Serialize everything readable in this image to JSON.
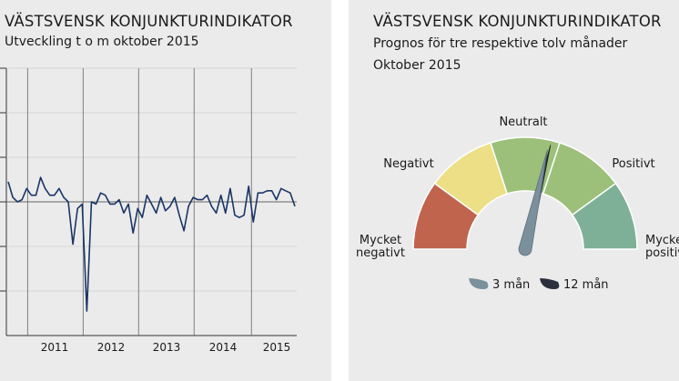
{
  "left_panel": {
    "title": "VÄSTSVENSK KONJUNKTURINDIKATOR",
    "subtitle": "Utveckling t o m oktober 2015"
  },
  "right_panel": {
    "title": "VÄSTSVENSK KONJUNKTURINDIKATOR",
    "subtitle_line1": "Prognos för tre respektive tolv månader",
    "subtitle_line2": "Oktober 2015"
  },
  "colors": {
    "line": "#1a3566",
    "negative_strong": "#c0644e",
    "negative": "#ecdf85",
    "neutral": "#9cc07a",
    "positive": "#9cc07a",
    "positive_strong": "#7eb097",
    "needle_3m": "#7b8f9d",
    "needle_12m": "#2b2f3d"
  },
  "chart_data": [
    {
      "type": "line",
      "title": "VÄSTSVENSK KONJUNKTURINDIKATOR",
      "subtitle": "Utveckling t o m oktober 2015",
      "x_tick_labels": [
        "2011",
        "2012",
        "2013",
        "2014",
        "2015"
      ],
      "ylim": [
        -3,
        3
      ],
      "grid": true,
      "series": [
        {
          "values": [
            0.45,
            0.1,
            0.0,
            0.05,
            0.3,
            0.15,
            0.15,
            0.55,
            0.3,
            0.15,
            0.15,
            0.3,
            0.1,
            0.0,
            -0.95,
            -0.15,
            -0.05,
            -2.45,
            0.0,
            -0.05,
            0.2,
            0.15,
            -0.05,
            -0.05,
            0.05,
            -0.25,
            -0.05,
            -0.7,
            -0.15,
            -0.35,
            0.15,
            -0.05,
            -0.25,
            0.1,
            -0.2,
            -0.1,
            0.1,
            -0.3,
            -0.65,
            -0.1,
            0.1,
            0.05,
            0.05,
            0.15,
            -0.1,
            -0.25,
            0.15,
            -0.25,
            0.3,
            -0.3,
            -0.35,
            -0.3,
            0.35,
            -0.45,
            0.2,
            0.2,
            0.25,
            0.25,
            0.05,
            0.3,
            0.25,
            0.2,
            -0.1
          ]
        }
      ]
    },
    {
      "type": "gauge",
      "title": "VÄSTSVENSK KONJUNKTURINDIKATOR",
      "subtitle": "Prognos för tre respektive tolv månader",
      "period": "Oktober 2015",
      "scale_min": 0,
      "scale_max": 5,
      "segments": [
        {
          "label": "Mycket negativt",
          "color": "#c0644e"
        },
        {
          "label": "Negativt",
          "color": "#ecdf85"
        },
        {
          "label": "Neutralt",
          "color": "#9cc07a"
        },
        {
          "label": "Positivt",
          "color": "#9cc07a"
        },
        {
          "label": "Mycket positivt",
          "color": "#7eb097"
        }
      ],
      "needles": [
        {
          "name": "3 mån",
          "value": 2.85,
          "color": "#7b8f9d"
        },
        {
          "name": "12 mån",
          "value": 2.88,
          "color": "#2b2f3d"
        }
      ]
    }
  ]
}
